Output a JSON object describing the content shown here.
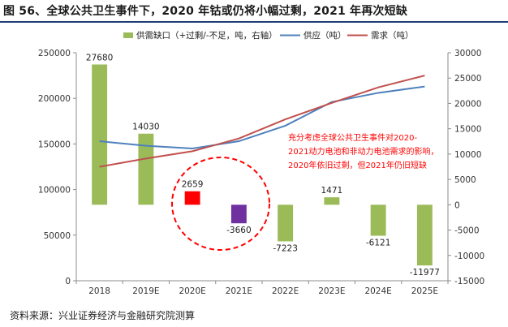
{
  "title": "图 56、全球公共卫生事件下，2020 年钴或仍将小幅过剩，2021 年再次短缺",
  "source": "资料来源：兴业证券经济与金融研究院测算",
  "colors": {
    "bar_green": "#9bbb59",
    "bar_red": "#ff0000",
    "bar_purple": "#7030a0",
    "supply_line": "#4f81bd",
    "demand_line": "#c0504d",
    "annotation_text": "#ff0000",
    "circle": "#ff0000",
    "axis": "#8c8c8c"
  },
  "chart_data": {
    "type": "bar+line",
    "categories": [
      "2018",
      "2019E",
      "2020E",
      "2021E",
      "2022E",
      "2023E",
      "2024E",
      "2025E"
    ],
    "series": [
      {
        "name": "供需缺口（+过剩/-不足，吨，右轴）",
        "type": "bar",
        "axis": "right",
        "values": [
          27680,
          14030,
          2659,
          -3660,
          -7223,
          1471,
          -6121,
          -11977
        ],
        "labels": [
          "27680",
          "14030",
          "2659",
          "-3660",
          "-7223",
          "1471",
          "-6121",
          "-11977"
        ],
        "highlight": {
          "2020E": "bar_red",
          "2021E": "bar_purple"
        }
      },
      {
        "name": "供应（吨）",
        "type": "line",
        "axis": "left",
        "values": [
          153000,
          148000,
          145000,
          153000,
          170000,
          196000,
          206000,
          213000
        ]
      },
      {
        "name": "需求（吨）",
        "type": "line",
        "axis": "left",
        "values": [
          125000,
          134000,
          142000,
          156000,
          177000,
          195000,
          212000,
          225000
        ]
      }
    ],
    "y_left": {
      "min": 0,
      "max": 250000,
      "ticks": [
        0,
        50000,
        100000,
        150000,
        200000,
        250000
      ]
    },
    "y_right": {
      "min": -15000,
      "max": 30000,
      "ticks": [
        -15000,
        -10000,
        -5000,
        0,
        5000,
        10000,
        15000,
        20000,
        25000,
        30000
      ]
    },
    "legend_position": "top",
    "grid": false,
    "annotation": {
      "lines": [
        "充分考虑全球公共卫生事件对2020-",
        "2021动力电池和非动力电池需求的影响，",
        "2020年依旧过剩，但2021年仍旧短缺"
      ]
    }
  }
}
